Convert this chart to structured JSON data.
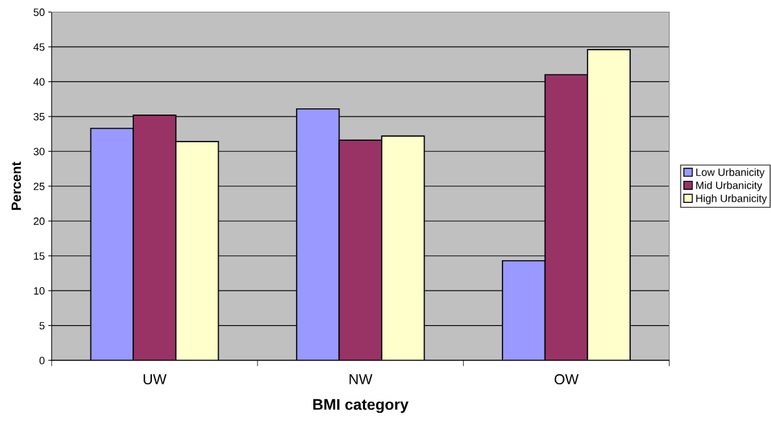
{
  "chart_data": {
    "type": "bar",
    "xlabel": "BMI category",
    "ylabel": "Percent",
    "categories": [
      "UW",
      "NW",
      "OW"
    ],
    "series": [
      {
        "name": "Low Urbanicity",
        "color": "#9999ff",
        "values": [
          33.3,
          36.1,
          14.3
        ]
      },
      {
        "name": "Mid Urbanicity",
        "color": "#993366",
        "values": [
          35.2,
          31.6,
          41.0
        ]
      },
      {
        "name": "High Urbanicity",
        "color": "#ffffcc",
        "values": [
          31.4,
          32.2,
          44.6
        ]
      }
    ],
    "ylim": [
      0,
      50
    ],
    "yticks": [
      0,
      5,
      10,
      15,
      20,
      25,
      30,
      35,
      40,
      45,
      50
    ],
    "grid": "y",
    "legend": "right"
  }
}
